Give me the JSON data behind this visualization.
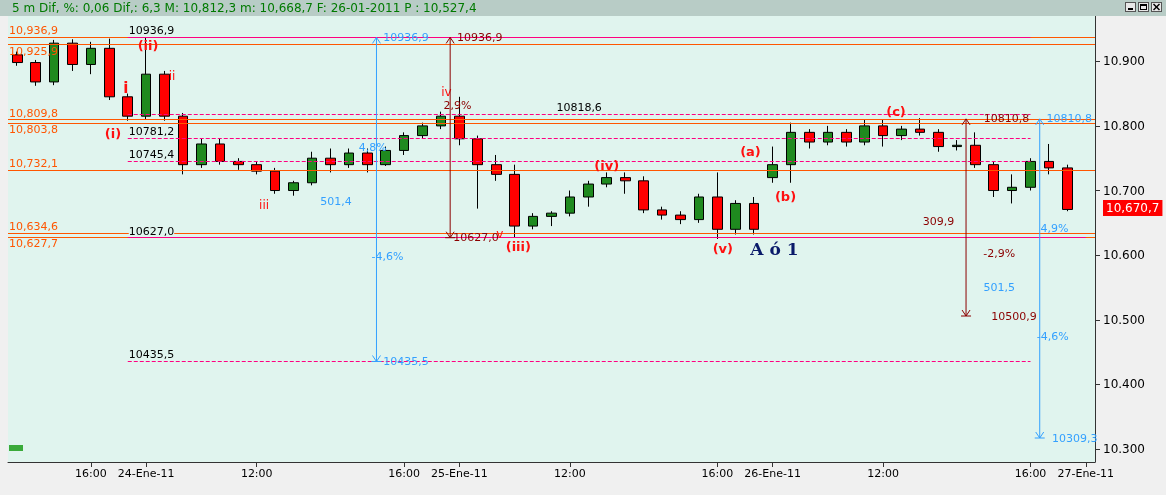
{
  "chart_data": {
    "type": "candlestick",
    "title": "5 m Dif, %: 0,06 Dif,: 6,3 M: 10,812,3 m: 10,668,7 F: 26-01-2011 P : 10,527,4",
    "categories": [
      null,
      null,
      null,
      null,
      "16:00",
      null,
      null,
      "24-Ene-11",
      null,
      null,
      null,
      null,
      null,
      "12:00",
      null,
      null,
      null,
      null,
      null,
      null,
      null,
      "16:00",
      null,
      null,
      "25-Ene-11",
      null,
      null,
      null,
      null,
      null,
      "12:00",
      null,
      null,
      null,
      null,
      null,
      null,
      null,
      "16:00",
      null,
      null,
      "26-Ene-11",
      null,
      null,
      null,
      null,
      null,
      "12:00",
      null,
      null,
      null,
      null,
      null,
      null,
      null,
      "16:00",
      null,
      null,
      "27-Ene-11"
    ],
    "ohlc": [
      [
        10910,
        10915,
        10893,
        10898
      ],
      [
        10898,
        10902,
        10862,
        10868
      ],
      [
        10868,
        10933,
        10863,
        10928
      ],
      [
        10928,
        10934,
        10885,
        10895
      ],
      [
        10895,
        10930,
        10880,
        10920
      ],
      [
        10920,
        10935,
        10840,
        10845
      ],
      [
        10845,
        10850,
        10808,
        10815
      ],
      [
        10815,
        10936.9,
        10810,
        10880
      ],
      [
        10880,
        10885,
        10808,
        10815
      ],
      [
        10815,
        10820,
        10725,
        10740
      ],
      [
        10740,
        10780,
        10735,
        10772
      ],
      [
        10772,
        10780,
        10740,
        10745
      ],
      [
        10745,
        10750,
        10732,
        10740
      ],
      [
        10740,
        10745,
        10725,
        10730
      ],
      [
        10730,
        10735,
        10695,
        10700
      ],
      [
        10700,
        10715,
        10692,
        10712
      ],
      [
        10712,
        10760,
        10708,
        10750
      ],
      [
        10750,
        10765,
        10728,
        10740
      ],
      [
        10740,
        10765,
        10735,
        10758
      ],
      [
        10758,
        10765,
        10728,
        10740
      ],
      [
        10740,
        10768,
        10738,
        10762
      ],
      [
        10762,
        10790,
        10755,
        10785
      ],
      [
        10785,
        10805,
        10780,
        10800
      ],
      [
        10800,
        10822,
        10795,
        10815
      ],
      [
        10815,
        10845,
        10770,
        10780
      ],
      [
        10780,
        10785,
        10672,
        10740
      ],
      [
        10740,
        10755,
        10715,
        10725
      ],
      [
        10725,
        10740,
        10627,
        10645
      ],
      [
        10645,
        10665,
        10640,
        10660
      ],
      [
        10660,
        10668,
        10645,
        10665
      ],
      [
        10665,
        10700,
        10660,
        10690
      ],
      [
        10690,
        10715,
        10675,
        10710
      ],
      [
        10710,
        10728,
        10705,
        10720
      ],
      [
        10720,
        10728,
        10695,
        10715
      ],
      [
        10715,
        10722,
        10665,
        10670
      ],
      [
        10670,
        10675,
        10655,
        10662
      ],
      [
        10662,
        10668,
        10648,
        10655
      ],
      [
        10655,
        10695,
        10650,
        10690
      ],
      [
        10690,
        10728,
        10625,
        10640
      ],
      [
        10640,
        10685,
        10632,
        10680
      ],
      [
        10680,
        10690,
        10632,
        10640
      ],
      [
        10720,
        10768,
        10712,
        10740
      ],
      [
        10740,
        10805,
        10712,
        10790
      ],
      [
        10790,
        10795,
        10765,
        10775
      ],
      [
        10775,
        10800,
        10770,
        10790
      ],
      [
        10790,
        10795,
        10768,
        10775
      ],
      [
        10775,
        10810,
        10770,
        10800
      ],
      [
        10800,
        10810,
        10768,
        10785
      ],
      [
        10785,
        10800,
        10778,
        10795
      ],
      [
        10795,
        10812,
        10785,
        10790
      ],
      [
        10790,
        10795,
        10760,
        10768
      ],
      [
        10768,
        10778,
        10762,
        10770
      ],
      [
        10770,
        10790,
        10735,
        10740
      ],
      [
        10740,
        10745,
        10690,
        10700
      ],
      [
        10700,
        10725,
        10680,
        10705
      ],
      [
        10705,
        10750,
        10700,
        10745
      ],
      [
        10745,
        10772,
        10725,
        10735
      ],
      [
        10735,
        10740,
        10668,
        10670.7
      ],
      null
    ],
    "ylim": [
      10280,
      10970
    ],
    "yticks": [
      {
        "value": 10300,
        "label": "10.300"
      },
      {
        "value": 10400,
        "label": "10.400"
      },
      {
        "value": 10500,
        "label": "10.500"
      },
      {
        "value": 10600,
        "label": "10.600"
      },
      {
        "value": 10700,
        "label": "10.700"
      },
      {
        "value": 10800,
        "label": "10.800"
      },
      {
        "value": 10900,
        "label": "10.900"
      }
    ],
    "ref_lines": [
      {
        "axis": "y",
        "value": 10936.9,
        "label": "10,936,9",
        "color": "#ff5500",
        "line_style": "solid"
      },
      {
        "axis": "y",
        "value": 10936.9,
        "label": "10936,9",
        "color": "#ff0080",
        "line_style": "solid"
      },
      {
        "axis": "y",
        "value": 10925.9,
        "label": "10,925,9",
        "color": "#ff5500",
        "line_style": "solid"
      },
      {
        "axis": "y",
        "value": 10809.8,
        "label": "10,809,8",
        "color": "#ff5500",
        "line_style": "solid"
      },
      {
        "axis": "y",
        "value": 10803.8,
        "label": "10,803,8",
        "color": "#ff5500",
        "line_style": "solid"
      },
      {
        "axis": "y",
        "value": 10732.1,
        "label": "10,732,1",
        "color": "#ff5500",
        "line_style": "solid"
      },
      {
        "axis": "y",
        "value": 10634.6,
        "label": "10,634,6",
        "color": "#ff5500",
        "line_style": "solid"
      },
      {
        "axis": "y",
        "value": 10627.7,
        "label": "10,627,7",
        "color": "#ff5500",
        "line_style": "solid"
      },
      {
        "axis": "y",
        "value": 10627.0,
        "label": "10627,0",
        "color": "#ff0080",
        "line_style": "solid"
      },
      {
        "axis": "y",
        "value": 10818.6,
        "label": "10818,6",
        "color": "#ff0080",
        "line_style": "dashed"
      },
      {
        "axis": "y",
        "value": 10781.2,
        "label": "10781,2",
        "color": "#ff0080",
        "line_style": "dashed"
      },
      {
        "axis": "y",
        "value": 10745.4,
        "label": "10745,4",
        "color": "#ff0080",
        "line_style": "dashed"
      },
      {
        "axis": "y",
        "value": 10435.5,
        "label": "10435,5",
        "color": "#ff0080",
        "line_style": "dashed"
      }
    ],
    "annotations": [
      "(i)",
      {
        "text": "(ii)",
        "y": 10925
      },
      "i",
      "ii",
      "iii",
      "iv",
      {
        "text": "v",
        "y": 10633
      },
      "(iii)",
      {
        "text": "(iv)",
        "y": 10738
      },
      "(v)",
      "A ó 1",
      "(a)",
      "(b)",
      {
        "text": "(c)",
        "y": 10823
      },
      {
        "text": "10936,9",
        "y": 10936.9
      },
      {
        "text": "4,8%",
        "y": 10766
      },
      "501,4",
      "-4,6%",
      {
        "text": "10435,5",
        "y": 10435.5
      },
      {
        "text": "10936,9",
        "y": 10936.9
      },
      {
        "text": "2,9%",
        "y": 10831
      },
      {
        "text": "10627,0",
        "y": 10627.0
      },
      "309,9",
      {
        "text": "10810,8",
        "y": 10810.8
      },
      "-2,9%",
      "10500,9",
      {
        "text": "10810,8",
        "y": 10810.8
      },
      "501,5",
      {
        "text": "4,9%",
        "y": 10641
      },
      "-4,6%",
      "10309,3",
      "10,670,7"
    ],
    "grid": false
  }
}
